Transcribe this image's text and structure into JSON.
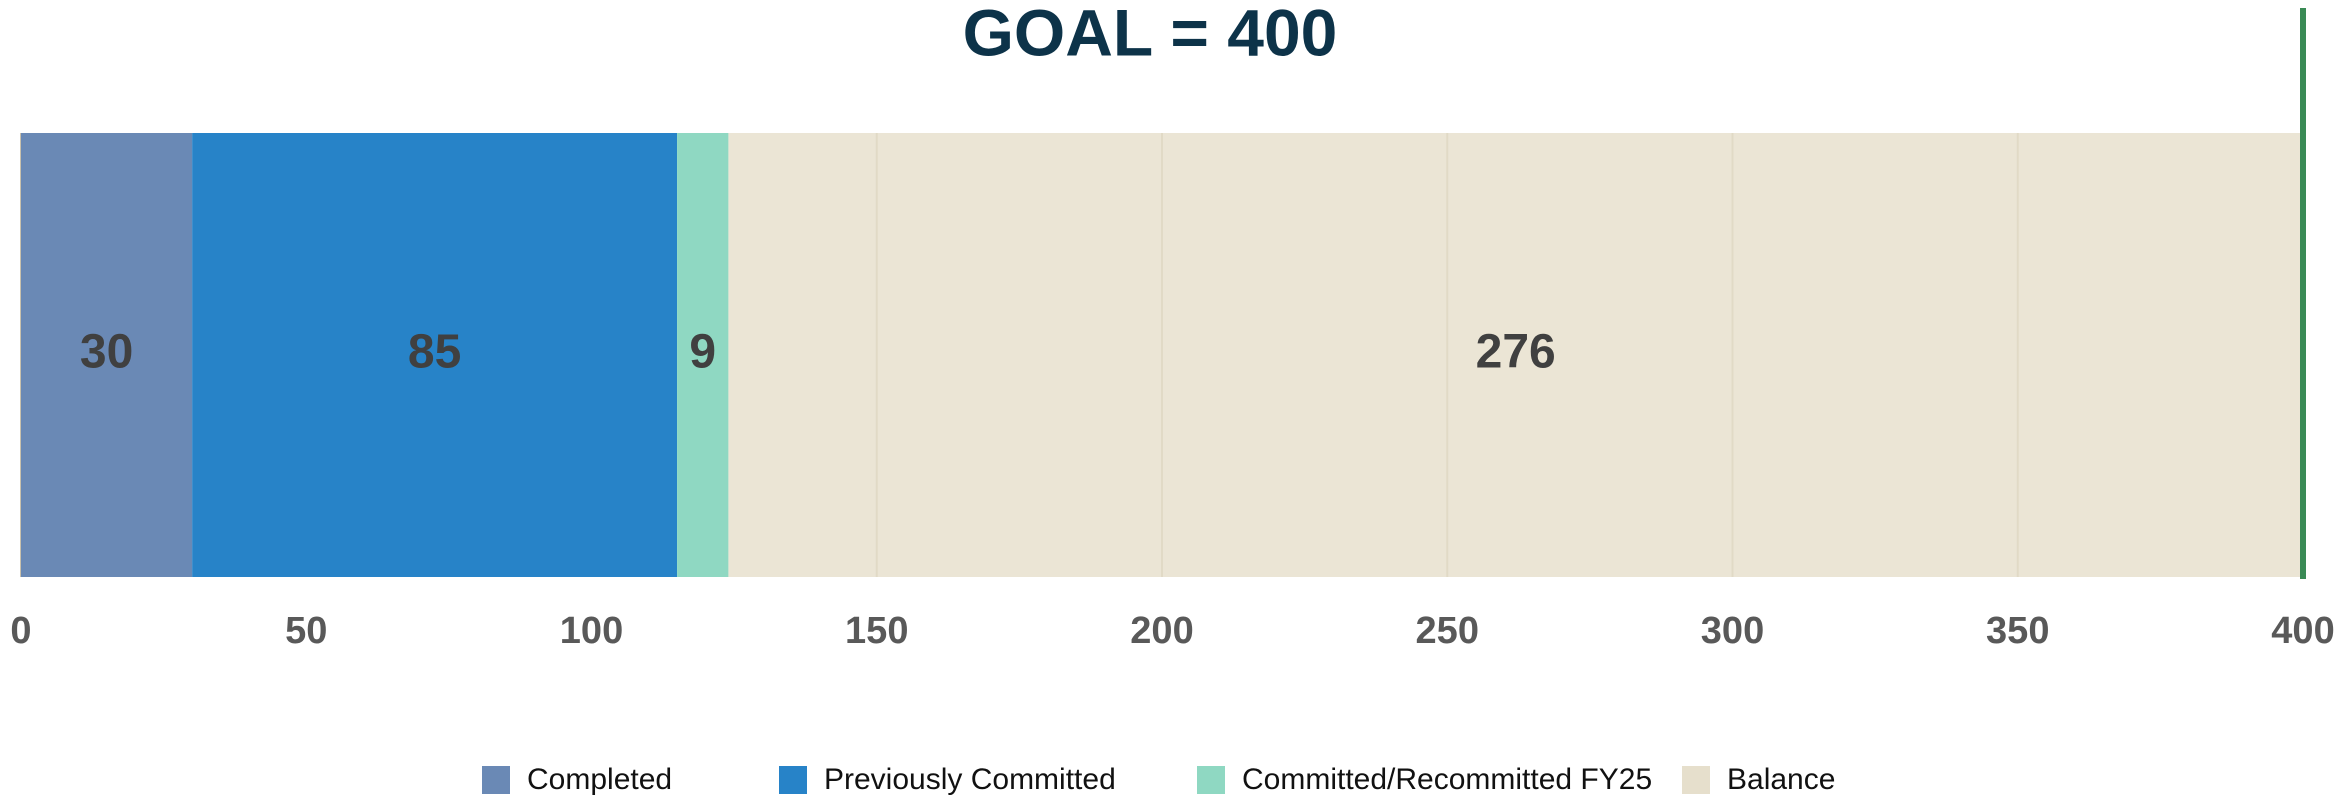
{
  "chart_data": {
    "type": "stacked-bar",
    "orientation": "horizontal",
    "title": "GOAL = 400",
    "series": [
      {
        "name": "Completed",
        "color": "#6a89b5",
        "values": [
          30
        ]
      },
      {
        "name": "Previously Committed",
        "color": "#2783c8",
        "values": [
          85
        ]
      },
      {
        "name": "Committed/Recommitted FY25",
        "color": "#8fd8c2",
        "values": [
          9
        ]
      },
      {
        "name": "Balance",
        "color": "#e6dfcc",
        "values": [
          276
        ]
      }
    ],
    "xlim": [
      0,
      400
    ],
    "xticks": [
      0,
      50,
      100,
      150,
      200,
      250,
      300,
      350,
      400
    ],
    "grid": true,
    "target": {
      "value": 400,
      "color": "#3a8a55"
    },
    "legend": "bottom"
  }
}
